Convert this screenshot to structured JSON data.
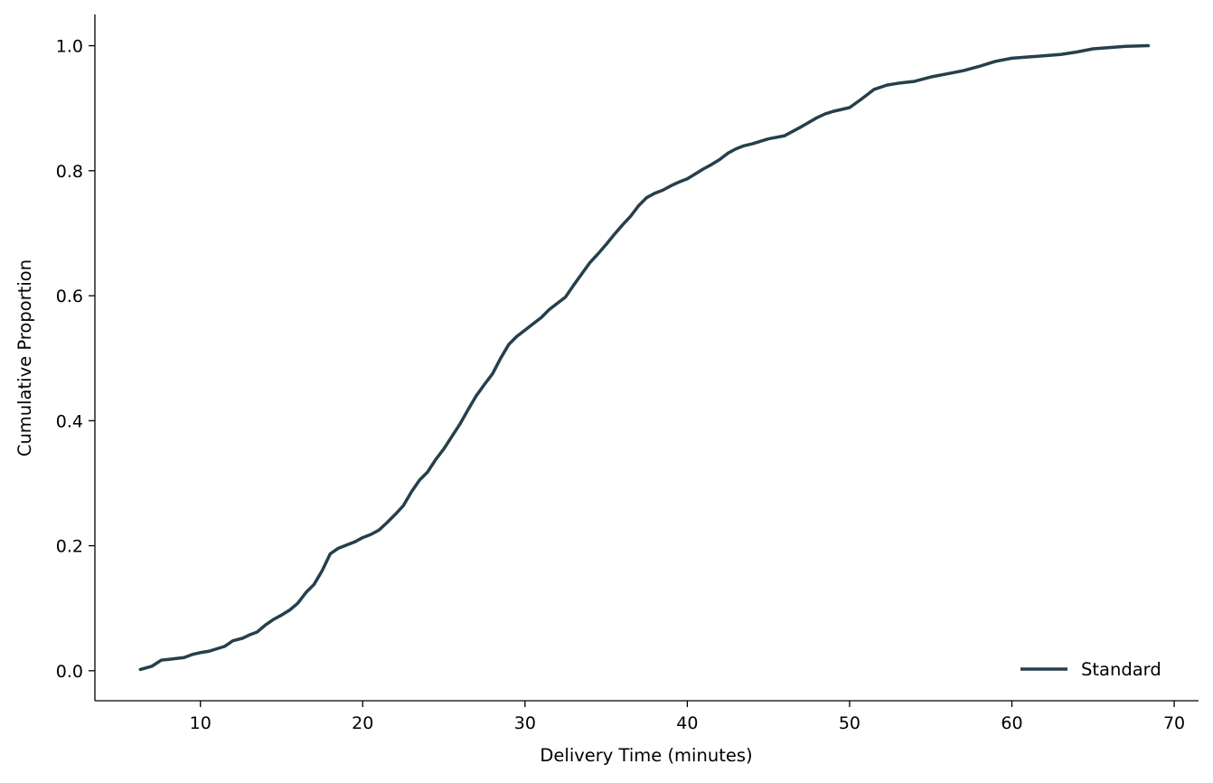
{
  "chart_data": {
    "type": "line",
    "title": "",
    "xlabel": "Delivery Time (minutes)",
    "ylabel": "Cumulative Proportion",
    "xlim": [
      3.5,
      71.5
    ],
    "ylim": [
      -0.048,
      1.05
    ],
    "xticks": [
      10,
      20,
      30,
      40,
      50,
      60,
      70
    ],
    "yticks": [
      0.0,
      0.2,
      0.4,
      0.6,
      0.8,
      1.0
    ],
    "ytick_labels": [
      "0.0",
      "0.2",
      "0.4",
      "0.6",
      "0.8",
      "1.0"
    ],
    "grid": false,
    "legend_position": "lower-right",
    "series": [
      {
        "name": "Standard",
        "color": "#263f4c",
        "x": [
          6.3,
          7.0,
          7.3,
          7.6,
          8.0,
          9.0,
          9.5,
          10.0,
          10.5,
          11.0,
          11.5,
          12.0,
          12.6,
          13.0,
          13.5,
          14.0,
          14.5,
          15.0,
          15.5,
          16.0,
          16.5,
          17.0,
          17.5,
          18.0,
          18.5,
          19.0,
          19.5,
          20.0,
          20.5,
          21.0,
          21.5,
          22.0,
          22.5,
          23.0,
          23.5,
          24.0,
          24.5,
          25.0,
          25.5,
          26.0,
          26.5,
          27.0,
          27.5,
          28.0,
          28.5,
          29.0,
          29.5,
          30.0,
          30.5,
          31.0,
          31.5,
          32.0,
          32.5,
          33.0,
          33.5,
          34.0,
          34.5,
          35.0,
          35.5,
          36.0,
          36.5,
          37.0,
          37.5,
          38.0,
          38.5,
          39.0,
          39.5,
          40.0,
          40.5,
          41.0,
          41.5,
          42.0,
          42.5,
          43.0,
          43.5,
          44.0,
          45.0,
          46.0,
          47.0,
          48.0,
          48.5,
          49.0,
          50.0,
          50.7,
          51.5,
          52.3,
          53.0,
          54.0,
          55.0,
          56.0,
          57.0,
          58.0,
          58.5,
          59.0,
          60.0,
          61.0,
          62.0,
          63.0,
          64.0,
          65.0,
          66.0,
          67.0,
          68.4
        ],
        "y": [
          0.002,
          0.007,
          0.012,
          0.017,
          0.018,
          0.021,
          0.026,
          0.029,
          0.031,
          0.035,
          0.039,
          0.048,
          0.052,
          0.057,
          0.062,
          0.073,
          0.082,
          0.089,
          0.097,
          0.108,
          0.125,
          0.138,
          0.16,
          0.187,
          0.196,
          0.201,
          0.206,
          0.213,
          0.218,
          0.225,
          0.237,
          0.25,
          0.264,
          0.286,
          0.305,
          0.318,
          0.338,
          0.355,
          0.375,
          0.395,
          0.418,
          0.44,
          0.458,
          0.475,
          0.5,
          0.522,
          0.535,
          0.545,
          0.555,
          0.565,
          0.578,
          0.588,
          0.598,
          0.617,
          0.635,
          0.653,
          0.667,
          0.682,
          0.698,
          0.713,
          0.727,
          0.744,
          0.757,
          0.764,
          0.769,
          0.776,
          0.782,
          0.787,
          0.795,
          0.803,
          0.81,
          0.818,
          0.828,
          0.835,
          0.84,
          0.843,
          0.851,
          0.856,
          0.87,
          0.885,
          0.891,
          0.895,
          0.901,
          0.914,
          0.93,
          0.937,
          0.94,
          0.943,
          0.95,
          0.955,
          0.96,
          0.967,
          0.971,
          0.975,
          0.98,
          0.982,
          0.984,
          0.986,
          0.99,
          0.995,
          0.997,
          0.999,
          1.0
        ]
      }
    ]
  }
}
